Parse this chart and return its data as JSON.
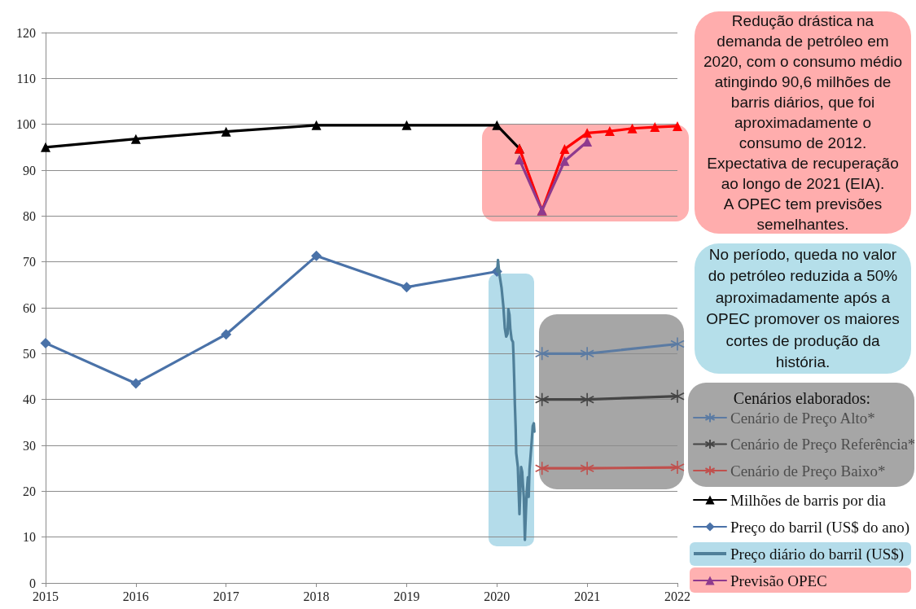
{
  "chart_data": {
    "type": "line",
    "xlim": [
      2015,
      2022
    ],
    "xticks": [
      2015,
      2016,
      2017,
      2018,
      2019,
      2020,
      2021,
      2022
    ],
    "ylim": [
      0,
      120
    ],
    "yticks": [
      0,
      10,
      20,
      30,
      40,
      50,
      60,
      70,
      80,
      90,
      100,
      110,
      120
    ],
    "grid": "y",
    "legend": "right",
    "legend_title": "Cenários elaborados:",
    "line_style": "solid",
    "annotations": [
      "Redução drástica na\ndemanda de petróleo em\n2020, com o consumo médio\natingindo 90,6 milhões de\nbarris diários, que foi\naproximadamente o\nconsumo de 2012.\nExpectativa de recuperação\nao longo de 2021 (EIA).\nA OPEC tem previsões\nsemelhantes.",
      "No período, queda no valor\ndo petróleo reduzida a 50%\naproximadamente após a\nOPEC promover os maiores\ncortes de produção da\nhistória."
    ],
    "series": [
      {
        "name": "Cenário de Preço Alto*",
        "color": "#5b7ba3",
        "marker": "cross",
        "x": [
          2020.5,
          2021,
          2022
        ],
        "values": [
          50,
          50,
          52.1
        ]
      },
      {
        "name": "Cenário de Preço Referência*",
        "color": "#454545",
        "marker": "cross",
        "x": [
          2020.5,
          2021,
          2022
        ],
        "values": [
          40,
          40,
          40.7
        ]
      },
      {
        "name": "Cenário de Preço Baixo*",
        "color": "#c0504d",
        "marker": "cross",
        "x": [
          2020.5,
          2021,
          2022
        ],
        "values": [
          25,
          25,
          25.2
        ]
      },
      {
        "name": "Milhões de barris por dia",
        "color": "#000000",
        "marker": "triangle",
        "x": [
          2015,
          2016,
          2017,
          2018,
          2019,
          2020,
          2020.25
        ],
        "values": [
          95.0,
          96.8,
          98.4,
          99.8,
          99.8,
          99.8,
          94.7
        ]
      },
      {
        "name": "Preço do barril (US$ do ano)",
        "color": "#4a72a8",
        "marker": "diamond",
        "x": [
          2015,
          2016,
          2017,
          2018,
          2019,
          2020
        ],
        "values": [
          52.3,
          43.5,
          54.2,
          71.3,
          64.5,
          67.9
        ]
      },
      {
        "name": "Preço diário do barril (US$)",
        "color": "#4f7f99",
        "marker": "none",
        "x": [
          2020.003,
          2020.012,
          2020.027,
          2020.051,
          2020.072,
          2020.088,
          2020.103,
          2020.118,
          2020.127,
          2020.139,
          2020.148,
          2020.163,
          2020.178,
          2020.184,
          2020.193,
          2020.199,
          2020.208,
          2020.214,
          2020.232,
          2020.238,
          2020.25,
          2020.259,
          2020.268,
          2020.28,
          2020.289,
          2020.298,
          2020.31,
          2020.322,
          2020.331,
          2020.343,
          2020.352,
          2020.361,
          2020.373,
          2020.385,
          2020.397,
          2020.409,
          2020.415
        ],
        "values": [
          67.9,
          70.4,
          67.4,
          64.4,
          60.2,
          55.5,
          53.7,
          54.3,
          59.7,
          58.5,
          55.5,
          53.1,
          52.5,
          49.6,
          43.7,
          38.9,
          33.6,
          28.3,
          25.3,
          21.8,
          15.0,
          20.0,
          25.3,
          24.2,
          21.2,
          18.8,
          9.4,
          15.9,
          20.0,
          23.0,
          18.8,
          24.7,
          27.7,
          30.7,
          34.2,
          34.8,
          33.0
        ]
      },
      {
        "color": "#ff0000",
        "marker": "triangle",
        "x": [
          2020.25,
          2020.5,
          2020.75,
          2021,
          2021.25,
          2021.5,
          2021.75,
          2022
        ],
        "values": [
          94.7,
          81.2,
          94.6,
          98.1,
          98.5,
          99.1,
          99.4,
          99.6
        ]
      },
      {
        "name": "Previsão OPEC",
        "color": "#8e3a8e",
        "marker": "triangle",
        "x": [
          2020.25,
          2020.5,
          2020.75,
          2021
        ],
        "values": [
          92.3,
          81.2,
          92.0,
          96.2
        ]
      }
    ]
  }
}
